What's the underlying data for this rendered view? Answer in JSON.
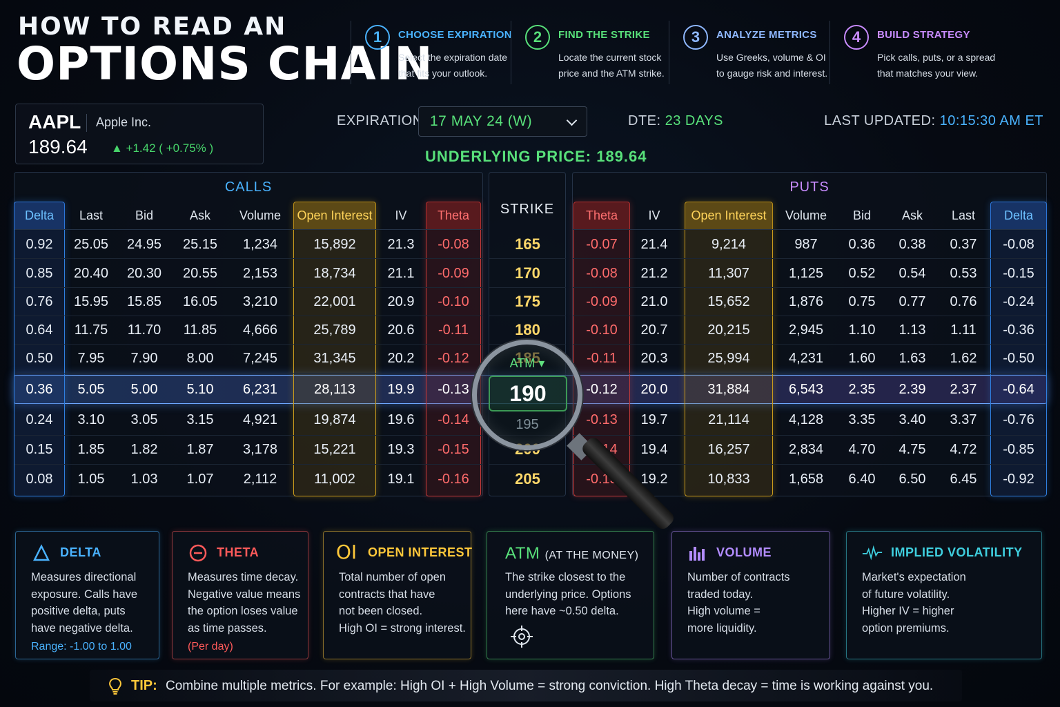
{
  "header": {
    "title_line1": "HOW TO READ AN",
    "title_line2": "OPTIONS CHAIN",
    "steps": [
      {
        "num": "1",
        "title": "CHOOSE EXPIRATION",
        "line1": "Select the expiration date",
        "line2": "that fits your outlook.",
        "color": "#4ab3ff"
      },
      {
        "num": "2",
        "title": "FIND THE STRIKE",
        "line1": "Locate the current stock",
        "line2": "price and the ATM strike.",
        "color": "#58e07a"
      },
      {
        "num": "3",
        "title": "ANALYZE METRICS",
        "line1": "Use Greeks, volume & OI",
        "line2": "to gauge risk and interest.",
        "color": "#8fb8ff"
      },
      {
        "num": "4",
        "title": "BUILD STRATEGY",
        "line1": "Pick calls, puts, or a spread",
        "line2": "that matches your view.",
        "color": "#c98cff"
      }
    ]
  },
  "ticker": {
    "symbol": "AAPL",
    "name": "Apple Inc.",
    "price": "189.64",
    "change": "▲ +1.42 ( +0.75% )"
  },
  "controls": {
    "expiration_label": "EXPIRATION:",
    "expiration_value": "17 MAY 24 (W)",
    "dte_label": "DTE:",
    "dte_value": "23 DAYS",
    "updated_label": "LAST UPDATED:",
    "updated_value": "10:15:30 AM ET",
    "underlying": "UNDERLYING PRICE: 189.64"
  },
  "chain": {
    "calls_title": "CALLS",
    "puts_title": "PUTS",
    "strike_title": "STRIKE",
    "call_headers": [
      "Delta",
      "Last",
      "Bid",
      "Ask",
      "Volume",
      "Open Interest",
      "IV",
      "Theta"
    ],
    "put_headers": [
      "Theta",
      "IV",
      "Open Interest",
      "Volume",
      "Bid",
      "Ask",
      "Last",
      "Delta"
    ],
    "rows": [
      {
        "strike": "165",
        "calls": [
          "0.92",
          "25.05",
          "24.95",
          "25.15",
          "1,234",
          "15,892",
          "21.3",
          "-0.08"
        ],
        "puts": [
          "-0.07",
          "21.4",
          "9,214",
          "987",
          "0.36",
          "0.38",
          "0.37",
          "-0.08"
        ]
      },
      {
        "strike": "170",
        "calls": [
          "0.85",
          "20.40",
          "20.30",
          "20.55",
          "2,153",
          "18,734",
          "21.1",
          "-0.09"
        ],
        "puts": [
          "-0.08",
          "21.2",
          "11,307",
          "1,125",
          "0.52",
          "0.54",
          "0.53",
          "-0.15"
        ]
      },
      {
        "strike": "175",
        "calls": [
          "0.76",
          "15.95",
          "15.85",
          "16.05",
          "3,210",
          "22,001",
          "20.9",
          "-0.10"
        ],
        "puts": [
          "-0.09",
          "21.0",
          "15,652",
          "1,876",
          "0.75",
          "0.77",
          "0.76",
          "-0.24"
        ]
      },
      {
        "strike": "180",
        "calls": [
          "0.64",
          "11.75",
          "11.70",
          "11.85",
          "4,666",
          "25,789",
          "20.6",
          "-0.11"
        ],
        "puts": [
          "-0.10",
          "20.7",
          "20,215",
          "2,945",
          "1.10",
          "1.13",
          "1.11",
          "-0.36"
        ]
      },
      {
        "strike": "185",
        "calls": [
          "0.50",
          "7.95",
          "7.90",
          "8.00",
          "7,245",
          "31,345",
          "20.2",
          "-0.12"
        ],
        "puts": [
          "-0.11",
          "20.3",
          "25,994",
          "4,231",
          "1.60",
          "1.63",
          "1.62",
          "-0.50"
        ]
      },
      {
        "strike": "190",
        "calls": [
          "0.36",
          "5.05",
          "5.00",
          "5.10",
          "6,231",
          "28,113",
          "19.9",
          "-0.13"
        ],
        "puts": [
          "-0.12",
          "20.0",
          "31,884",
          "6,543",
          "2.35",
          "2.39",
          "2.37",
          "-0.64"
        ]
      },
      {
        "strike": "195",
        "calls": [
          "0.24",
          "3.10",
          "3.05",
          "3.15",
          "4,921",
          "19,874",
          "19.6",
          "-0.14"
        ],
        "puts": [
          "-0.13",
          "19.7",
          "21,114",
          "4,128",
          "3.35",
          "3.40",
          "3.37",
          "-0.76"
        ]
      },
      {
        "strike": "200",
        "calls": [
          "0.15",
          "1.85",
          "1.82",
          "1.87",
          "3,178",
          "15,221",
          "19.3",
          "-0.15"
        ],
        "puts": [
          "-0.14",
          "19.4",
          "16,257",
          "2,834",
          "4.70",
          "4.75",
          "4.72",
          "-0.85"
        ]
      },
      {
        "strike": "205",
        "calls": [
          "0.08",
          "1.05",
          "1.03",
          "1.07",
          "2,112",
          "11,002",
          "19.1",
          "-0.16"
        ],
        "puts": [
          "-0.15",
          "19.2",
          "10,833",
          "1,658",
          "6.40",
          "6.50",
          "6.45",
          "-0.92"
        ]
      }
    ],
    "atm_label": "ATM ▾",
    "atm_strike": "190"
  },
  "cards": [
    {
      "icon": "delta-icon",
      "title": "DELTA",
      "lines": [
        "Measures directional",
        "exposure. Calls have",
        "positive delta, puts",
        "have negative delta."
      ],
      "extra": "Range: -1.00 to 1.00",
      "color": "#4ab3ff"
    },
    {
      "icon": "minus-circle-icon",
      "title": "THETA",
      "lines": [
        "Measures time decay.",
        "Negative value means",
        "the option loses value",
        "as time passes."
      ],
      "extra": "(Per day)",
      "color": "#ff5a5a"
    },
    {
      "icon": "oi-icon",
      "icon_text": "OI",
      "title": "OPEN INTEREST",
      "lines": [
        "Total number of open",
        "contracts that have",
        "not been closed.",
        "High OI = strong interest."
      ],
      "extra": "",
      "color": "#ffc83a"
    },
    {
      "icon": "target-icon",
      "title": "ATM",
      "title_sub": "(AT THE MONEY)",
      "lines": [
        "The strike closest to the",
        "underlying price. Options",
        "here have ~0.50 delta."
      ],
      "extra": "",
      "color": "#58e07a"
    },
    {
      "icon": "bar-chart-icon",
      "title": "VOLUME",
      "lines": [
        "Number of contracts",
        "traded today.",
        "High volume =",
        "more liquidity."
      ],
      "extra": "",
      "color": "#b28cff"
    },
    {
      "icon": "pulse-icon",
      "title": "IMPLIED VOLATILITY",
      "lines": [
        "Market's expectation",
        "of future volatility.",
        "Higher IV = higher",
        "option premiums."
      ],
      "extra": "",
      "color": "#3fd0e0"
    }
  ],
  "tip": {
    "label": "TIP:",
    "text": "Combine multiple metrics. For example: High OI + High Volume = strong conviction. High Theta decay = time is working against you."
  }
}
